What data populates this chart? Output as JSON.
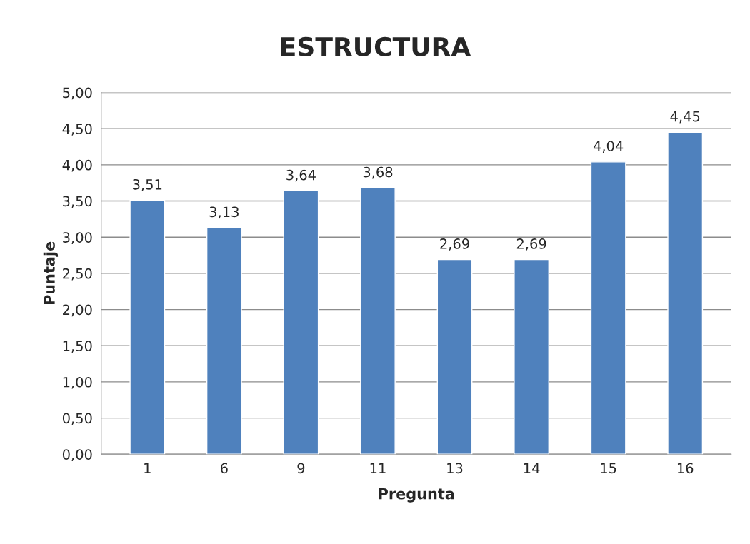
{
  "chart_data": {
    "type": "bar",
    "title": "ESTRUCTURA",
    "xlabel": "Pregunta",
    "ylabel": "Puntaje",
    "categories": [
      "1",
      "6",
      "9",
      "11",
      "13",
      "14",
      "15",
      "16"
    ],
    "values": [
      3.51,
      3.13,
      3.64,
      3.68,
      2.69,
      2.69,
      4.04,
      4.45
    ],
    "value_labels": [
      "3,51",
      "3,13",
      "3,64",
      "3,68",
      "2,69",
      "2,69",
      "4,04",
      "4,45"
    ],
    "color": "#4f81bd",
    "ylim": [
      0,
      5
    ],
    "yticks": [
      {
        "value": 0,
        "label": "0,00"
      },
      {
        "value": 0.5,
        "label": "0,50"
      },
      {
        "value": 1,
        "label": "1,00"
      },
      {
        "value": 1.5,
        "label": "1,50"
      },
      {
        "value": 2,
        "label": "2,00"
      },
      {
        "value": 2.5,
        "label": "2,50"
      },
      {
        "value": 3,
        "label": "3,00"
      },
      {
        "value": 3.5,
        "label": "3,50"
      },
      {
        "value": 4,
        "label": "4,00"
      },
      {
        "value": 4.5,
        "label": "4,50"
      },
      {
        "value": 5,
        "label": "5,00"
      }
    ],
    "grid": "y"
  }
}
